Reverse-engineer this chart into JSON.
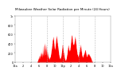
{
  "title": "Milwaukee Weather Solar Radiation per Minute (24 Hours)",
  "bg_color": "#ffffff",
  "plot_bg_color": "#ffffff",
  "bar_color": "#ff0000",
  "grid_color": "#aaaaaa",
  "text_color": "#000000",
  "ylim": [
    0,
    1000
  ],
  "xlim": [
    0,
    1440
  ],
  "num_points": 1440,
  "xlabel_fontsize": 2.5,
  "ylabel_fontsize": 2.5,
  "title_fontsize": 3.0,
  "x_ticks": [
    0,
    120,
    240,
    360,
    480,
    600,
    720,
    840,
    960,
    1080,
    1200,
    1320,
    1440
  ],
  "x_tick_labels": [
    "12a",
    "2",
    "4",
    "6",
    "8",
    "10",
    "12p",
    "2",
    "4",
    "6",
    "8",
    "10",
    "12a"
  ],
  "y_ticks": [
    0,
    200,
    400,
    600,
    800,
    1000
  ],
  "y_tick_labels": [
    "0",
    "200",
    "400",
    "600",
    "800",
    "1k"
  ],
  "vgrid_positions": [
    240,
    480,
    720,
    960,
    1200
  ]
}
